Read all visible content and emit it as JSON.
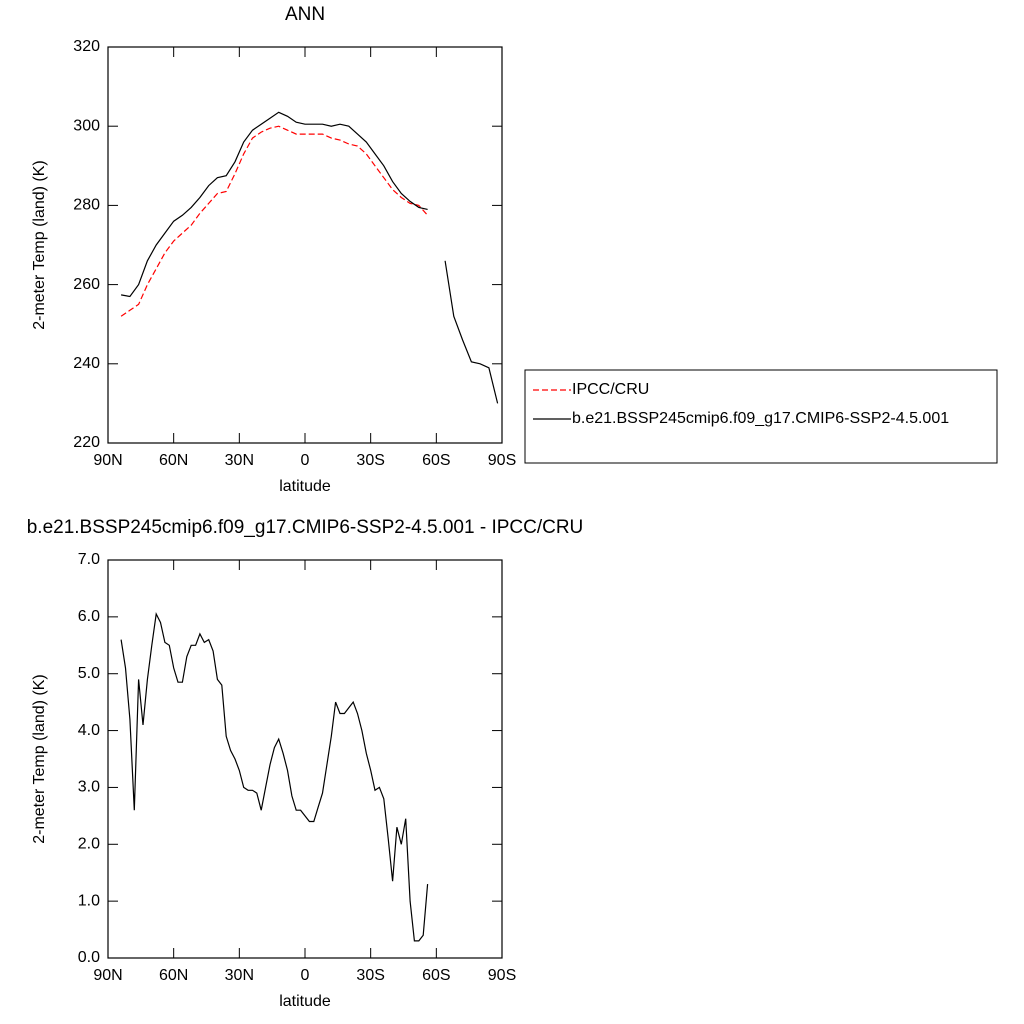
{
  "chart_data": [
    {
      "type": "line",
      "title": "ANN",
      "xlabel": "latitude",
      "ylabel": "2-meter Temp (land) (K)",
      "x": [
        84,
        80,
        76,
        72,
        68,
        64,
        60,
        56,
        52,
        48,
        44,
        40,
        36,
        32,
        28,
        24,
        20,
        16,
        12,
        8,
        4,
        0,
        -4,
        -8,
        -12,
        -16,
        -20,
        -24,
        -28,
        -32,
        -36,
        -40,
        -44,
        -48,
        -52,
        -56,
        -60,
        -64,
        -68,
        -72,
        -76,
        -80,
        -84,
        -88
      ],
      "series": [
        {
          "name": "IPCC/CRU",
          "color": "#ff0000",
          "dash": true,
          "values": [
            252,
            253.5,
            255,
            260,
            264,
            268,
            271,
            273,
            275,
            278,
            280.5,
            283,
            283.5,
            288,
            293,
            297,
            298.5,
            299.5,
            300,
            299,
            298,
            298,
            298,
            298,
            297,
            296.5,
            295.5,
            295,
            293,
            290,
            287,
            284,
            282,
            280.5,
            280,
            277.5,
            null,
            null,
            null,
            null,
            null,
            null,
            null,
            null
          ]
        },
        {
          "name": "b.e21.BSSP245cmip6.f09_g17.CMIP6-SSP2-4.5.001",
          "color": "#000000",
          "dash": false,
          "values": [
            257.4,
            257,
            260,
            266,
            270,
            273,
            276,
            277.5,
            279.5,
            282,
            285,
            287,
            287.5,
            291,
            296,
            299,
            300.5,
            302,
            303.5,
            302.5,
            301,
            300.5,
            300.5,
            300.5,
            300,
            300.5,
            300,
            298,
            296,
            293,
            290,
            286,
            283,
            281,
            279.5,
            279,
            null,
            266,
            252,
            246,
            240.5,
            240,
            239,
            230
          ]
        }
      ],
      "xlim": [
        90,
        -90
      ],
      "xticks": [
        {
          "value": 90,
          "label": "90N"
        },
        {
          "value": 60,
          "label": "60N"
        },
        {
          "value": 30,
          "label": "30N"
        },
        0,
        {
          "value": -30,
          "label": "30S"
        },
        {
          "value": -60,
          "label": "60S"
        },
        {
          "value": -90,
          "label": "90S"
        }
      ],
      "ylim": [
        220,
        320
      ],
      "yticks": [
        220,
        240,
        260,
        280,
        300,
        320
      ],
      "legend": "outside-right"
    },
    {
      "type": "line",
      "title": "b.e21.BSSP245cmip6.f09_g17.CMIP6-SSP2-4.5.001 - IPCC/CRU",
      "xlabel": "latitude",
      "ylabel": "2-meter Temp (land) (K)",
      "x": [
        84,
        82,
        80,
        78,
        76,
        74,
        72,
        70,
        68,
        66,
        64,
        62,
        60,
        58,
        56,
        54,
        52,
        50,
        48,
        46,
        44,
        42,
        40,
        38,
        36,
        34,
        32,
        30,
        28,
        26,
        24,
        22,
        20,
        18,
        16,
        14,
        12,
        10,
        8,
        6,
        4,
        2,
        0,
        -2,
        -4,
        -6,
        -8,
        -10,
        -12,
        -14,
        -16,
        -18,
        -20,
        -22,
        -24,
        -26,
        -28,
        -30,
        -32,
        -34,
        -36,
        -38,
        -40,
        -42,
        -44,
        -46,
        -48,
        -50,
        -52,
        -54,
        -56
      ],
      "color": "#000000",
      "values": [
        5.6,
        5.1,
        4.2,
        2.6,
        4.9,
        4.1,
        4.9,
        5.5,
        6.05,
        5.9,
        5.55,
        5.5,
        5.1,
        4.85,
        4.85,
        5.3,
        5.5,
        5.5,
        5.7,
        5.55,
        5.6,
        5.4,
        4.9,
        4.8,
        3.9,
        3.65,
        3.5,
        3.3,
        3.0,
        2.95,
        2.95,
        2.9,
        2.6,
        3.0,
        3.4,
        3.7,
        3.85,
        3.6,
        3.3,
        2.85,
        2.6,
        2.6,
        2.5,
        2.4,
        2.4,
        2.65,
        2.9,
        3.4,
        3.9,
        4.5,
        4.3,
        4.3,
        4.4,
        4.5,
        4.3,
        4.0,
        3.6,
        3.3,
        2.95,
        3.0,
        2.8,
        2.1,
        1.35,
        2.3,
        2.0,
        2.45,
        1.0,
        0.3,
        0.3,
        0.4,
        1.3
      ],
      "xlim": [
        90,
        -90
      ],
      "xticks": [
        {
          "value": 90,
          "label": "90N"
        },
        {
          "value": 60,
          "label": "60N"
        },
        {
          "value": 30,
          "label": "30N"
        },
        0,
        {
          "value": -30,
          "label": "30S"
        },
        {
          "value": -60,
          "label": "60S"
        },
        {
          "value": -90,
          "label": "90S"
        }
      ],
      "ylim": [
        0,
        7
      ],
      "yticks": [
        {
          "value": 0,
          "label": "0.0"
        },
        {
          "value": 1,
          "label": "1.0"
        },
        {
          "value": 2,
          "label": "2.0"
        },
        {
          "value": 3,
          "label": "3.0"
        },
        {
          "value": 4,
          "label": "4.0"
        },
        {
          "value": 5,
          "label": "5.0"
        },
        {
          "value": 6,
          "label": "6.0"
        },
        {
          "value": 7,
          "label": "7.0"
        }
      ]
    }
  ]
}
